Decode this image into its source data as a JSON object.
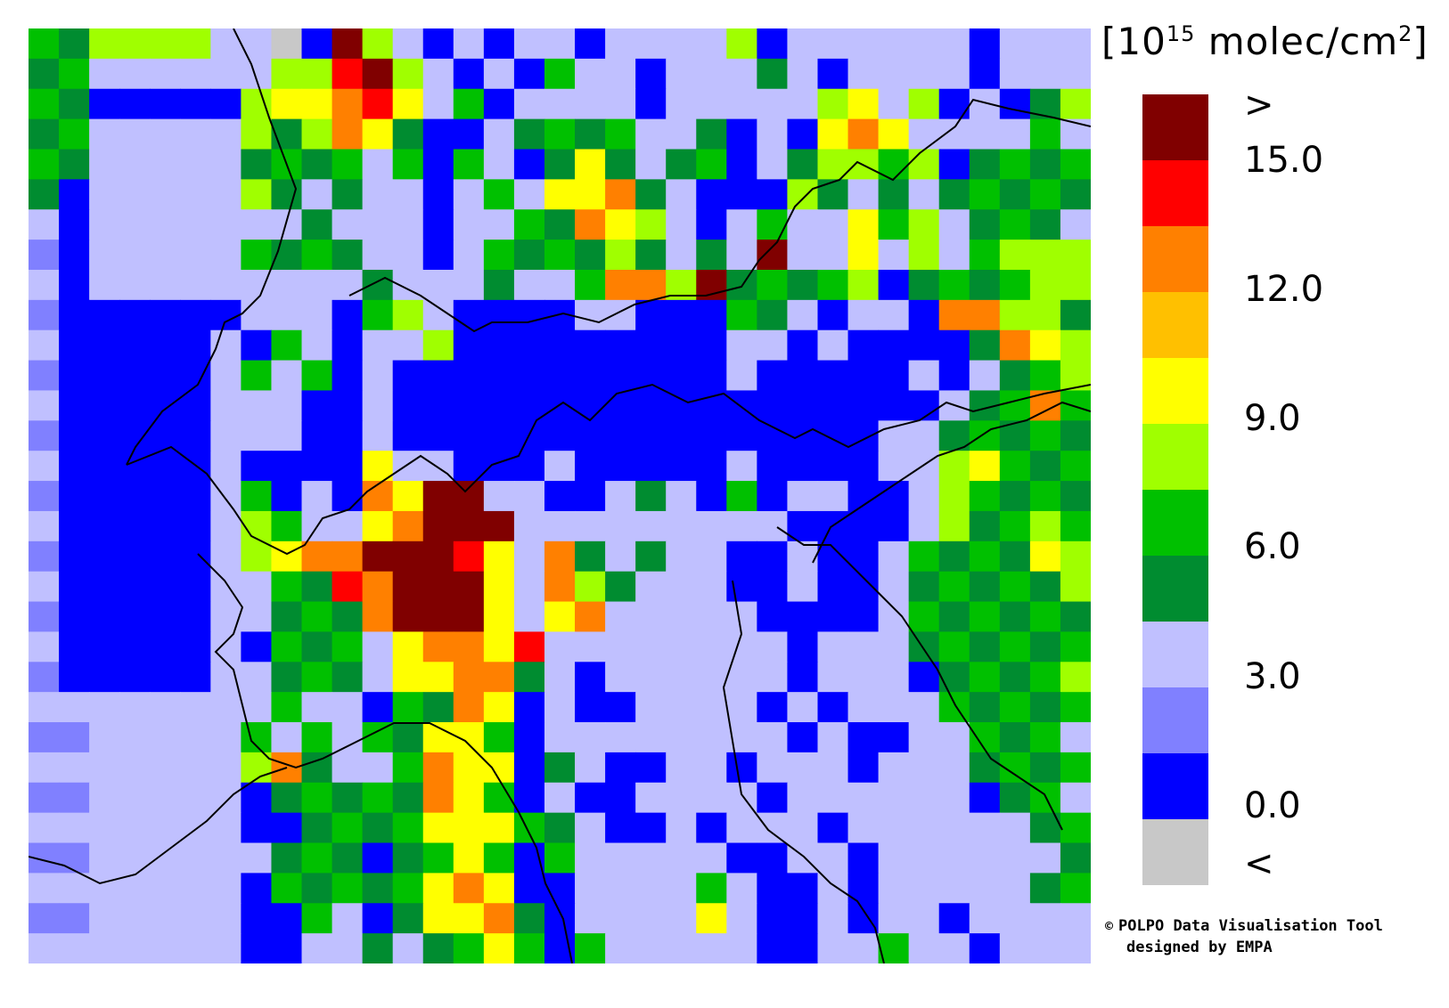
{
  "legend": {
    "unit_base": "[10",
    "unit_exp": "15",
    "unit_rest": " molec/cm",
    "unit_sq": "2",
    "unit_close": "]",
    "colors": [
      "#800000",
      "#ff0000",
      "#ff8000",
      "#ffc000",
      "#ffff00",
      "#a0ff00",
      "#00c000",
      "#008c30",
      "#c0c0ff",
      "#8080ff",
      "#0000ff",
      "#c8c8c8"
    ],
    "ticks": [
      ">",
      "15.0",
      "12.0",
      "9.0",
      "6.0",
      "3.0",
      "0.0",
      "<"
    ]
  },
  "credit": {
    "symbol": "©",
    "line1": "POLPO Data Visualisation Tool",
    "line2": "designed by EMPA"
  },
  "map": {
    "background_color": "#c8c8c8",
    "border_color": "#000000",
    "grid_rows": [
      "GGVVVVLL.BMVLBLBLLBLLLLVBLLLLLLBLLL",
      "GGLLLLLLVVRMVLBLBGLLBLLLGLBLLLLBLLL",
      "GGBBBBBVYYORYLGBLLLLBLLLLLVYLVBLBGV",
      "GGLLLLLVGVOYGBBLGGGGLLGBLBYOYLLLLGL",
      "GGLLLLLGGGGLGBGLBGYGLGGBLGVVGVBGGGG",
      "GBLLLLLVGLGLLBLGLYYOGLBBBVGLGLGGGGG",
      "LBLLLLLLLGLLLBLLGGOYVLBLGLLYGVLGGGL",
      "LBLLLLLGGGGLLBLGGGGVGLGLMLLYLVLGVVV",
      "LBLLLLLLLLLGLLLGLLGOOVMGGGGVBGGGGVV",
      "LBBBBBBLLLBGVLBBBBLLBBBGGLBLLBOOVVG",
      "LBBBBBLBGLBLLVBBBBBBBBBLLBLBBBBGOYV",
      "LBBBBBLGLGBLBBBBBBBBBBBLBBBBBLBLGGV",
      "LBBBBBLLLBBLBBBBBBBBBBBBBBBBBBLGGOG",
      "LBBBBBLLLBBLBBBBBBBBBBBBBBBBLLGGGGG",
      "LBBBBBLBBBBYLLBBBLBBBBBLBBBBLLVYGGG",
      "LBBBBBLGBLBOYMMLLBBLGLBGBLLBBLVGGGG",
      "LBBBBBLVGLLYOMMMLLLLLLLLLBBBBLVGGVG",
      "LBBBBBLVYOOMMMRYLOGLGLLBBLBBLGGGGYV",
      "LBBBBBLLGGROMMMYLOVGLLLBBLBBLGGGGGV",
      "LBBBBBLLGGGOMMMYLYOLLLLLBBBBLGGGGGG",
      "LBBBBBLBGGGLYOOYRLLLLLLLLBLLLGGGGGG",
      "LBBBBBLLGGGLYYOOGLBLLLLLLBLLLBGGGGV",
      "LLLLLLLLGLLBGGOYBLBBLLLLBLBLLLGGGGG",
      "LLLLLLLGLGLGGYYGBLLLLLLLLBLBBLLGGGL",
      "LLLLLLLVOGLLGOYYBGLBBLLBLLLBLLLGGGG",
      "LLLLLLLBGGGGGOYGBLBBLLLLBLLLLLLBGGL",
      "LLLLLLLBBGGGGYYYGGLBBLBLLLBLLLLLLGG",
      "LLLLLLLLGGGBGGYGBGLLLLLBBLLBLLLLLLG",
      "LLLLLLLBGGGGGYOYBBLLLLGLBBLBLLLLLGG",
      "LLLLLLLBBGLBGYYOGBLLLLYLBBLBLLBLLLL",
      "LLLLLLLBBLLGLGGYGBGLLLLLBBLLGLLBLLL"
    ]
  }
}
